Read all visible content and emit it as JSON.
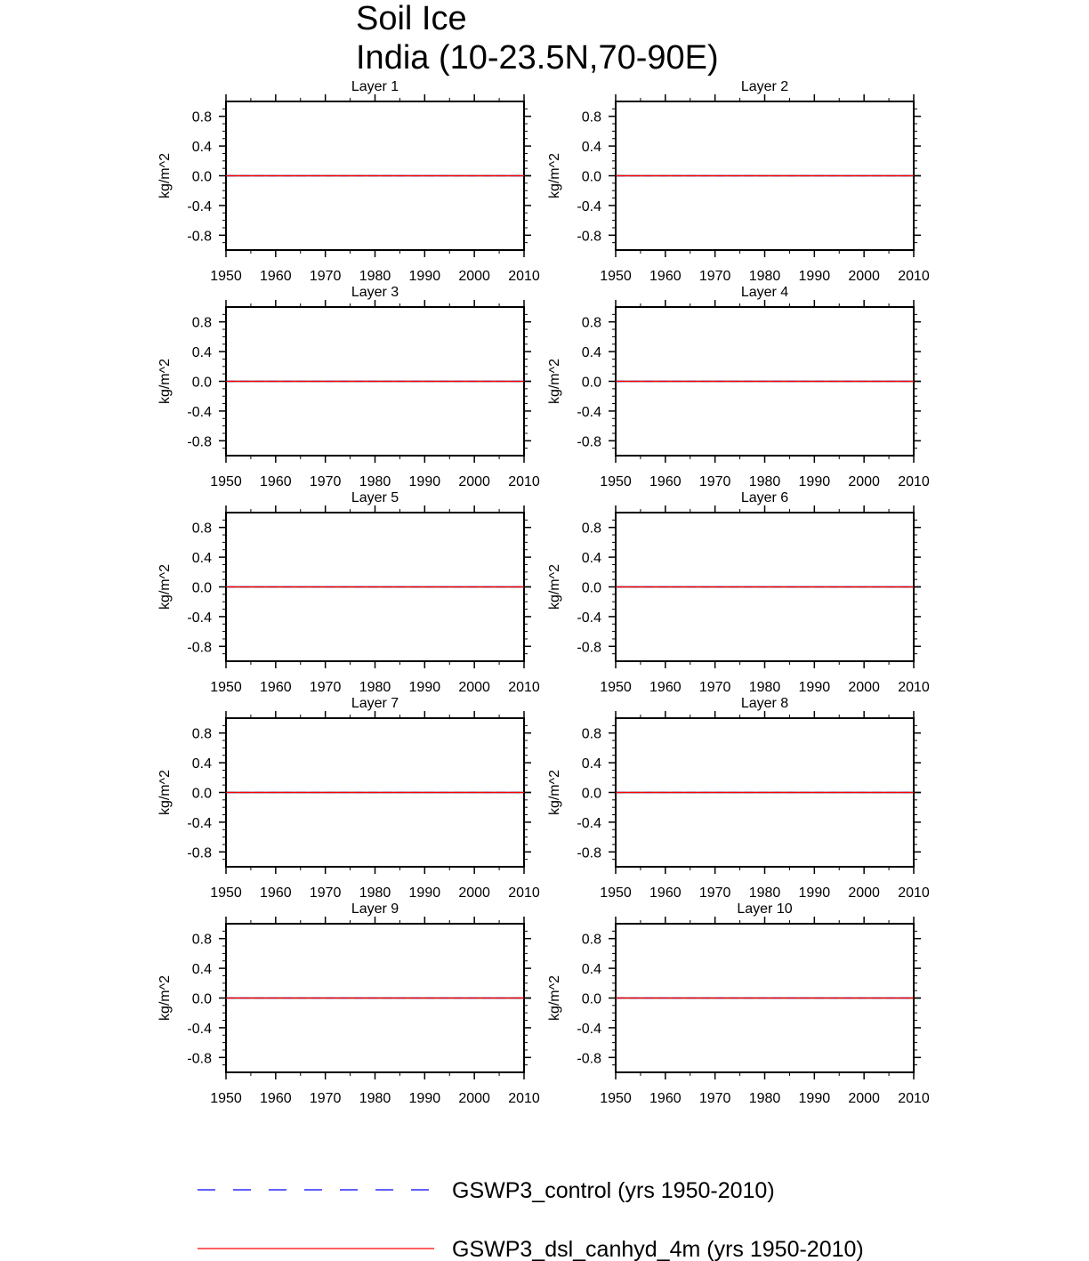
{
  "title": "Soil Ice",
  "subtitle": "India (10-23.5N,70-90E)",
  "chart_data": {
    "type": "line",
    "ylabel": "kg/m^2",
    "xlim": [
      1950,
      2010
    ],
    "ylim": [
      -1.0,
      1.0
    ],
    "x_ticks": [
      "1950",
      "1960",
      "1970",
      "1980",
      "1990",
      "2000",
      "2010"
    ],
    "y_ticks": [
      "0.8",
      "0.4",
      "0.0",
      "-0.4",
      "-0.8"
    ],
    "legend_position": "bottom",
    "series_styles": [
      {
        "color": "#0000ff",
        "dash": "dashed"
      },
      {
        "color": "#ff0000",
        "dash": "solid"
      }
    ],
    "legend": [
      "GSWP3_control (yrs 1950-2010)",
      "GSWP3_dsl_canhyd_4m (yrs 1950-2010)"
    ],
    "panels": [
      {
        "title": "Layer 1",
        "series": [
          {
            "x": [
              1950,
              2010
            ],
            "y": [
              0.0,
              0.0
            ]
          },
          {
            "x": [
              1950,
              2010
            ],
            "y": [
              0.0,
              0.0
            ]
          }
        ]
      },
      {
        "title": "Layer 2",
        "series": [
          {
            "x": [
              1950,
              2010
            ],
            "y": [
              0.0,
              0.0
            ]
          },
          {
            "x": [
              1950,
              2010
            ],
            "y": [
              0.0,
              0.0
            ]
          }
        ]
      },
      {
        "title": "Layer 3",
        "series": [
          {
            "x": [
              1950,
              2010
            ],
            "y": [
              0.0,
              0.0
            ]
          },
          {
            "x": [
              1950,
              2010
            ],
            "y": [
              0.0,
              0.0
            ]
          }
        ]
      },
      {
        "title": "Layer 4",
        "series": [
          {
            "x": [
              1950,
              2010
            ],
            "y": [
              0.0,
              0.0
            ]
          },
          {
            "x": [
              1950,
              2010
            ],
            "y": [
              0.0,
              0.0
            ]
          }
        ]
      },
      {
        "title": "Layer 5",
        "series": [
          {
            "x": [
              1950,
              2010
            ],
            "y": [
              0.0,
              0.0
            ]
          },
          {
            "x": [
              1950,
              2010
            ],
            "y": [
              0.0,
              0.0
            ]
          }
        ]
      },
      {
        "title": "Layer 6",
        "series": [
          {
            "x": [
              1950,
              2010
            ],
            "y": [
              0.0,
              0.0
            ]
          },
          {
            "x": [
              1950,
              2010
            ],
            "y": [
              0.0,
              0.0
            ]
          }
        ]
      },
      {
        "title": "Layer 7",
        "series": [
          {
            "x": [
              1950,
              2010
            ],
            "y": [
              0.0,
              0.0
            ]
          },
          {
            "x": [
              1950,
              2010
            ],
            "y": [
              0.0,
              0.0
            ]
          }
        ]
      },
      {
        "title": "Layer 8",
        "series": [
          {
            "x": [
              1950,
              2010
            ],
            "y": [
              0.0,
              0.0
            ]
          },
          {
            "x": [
              1950,
              2010
            ],
            "y": [
              0.0,
              0.0
            ]
          }
        ]
      },
      {
        "title": "Layer 9",
        "series": [
          {
            "x": [
              1950,
              2010
            ],
            "y": [
              0.0,
              0.0
            ]
          },
          {
            "x": [
              1950,
              2010
            ],
            "y": [
              0.0,
              0.0
            ]
          }
        ]
      },
      {
        "title": "Layer 10",
        "series": [
          {
            "x": [
              1950,
              2010
            ],
            "y": [
              0.0,
              0.0
            ]
          },
          {
            "x": [
              1950,
              2010
            ],
            "y": [
              0.0,
              0.0
            ]
          }
        ]
      }
    ]
  }
}
